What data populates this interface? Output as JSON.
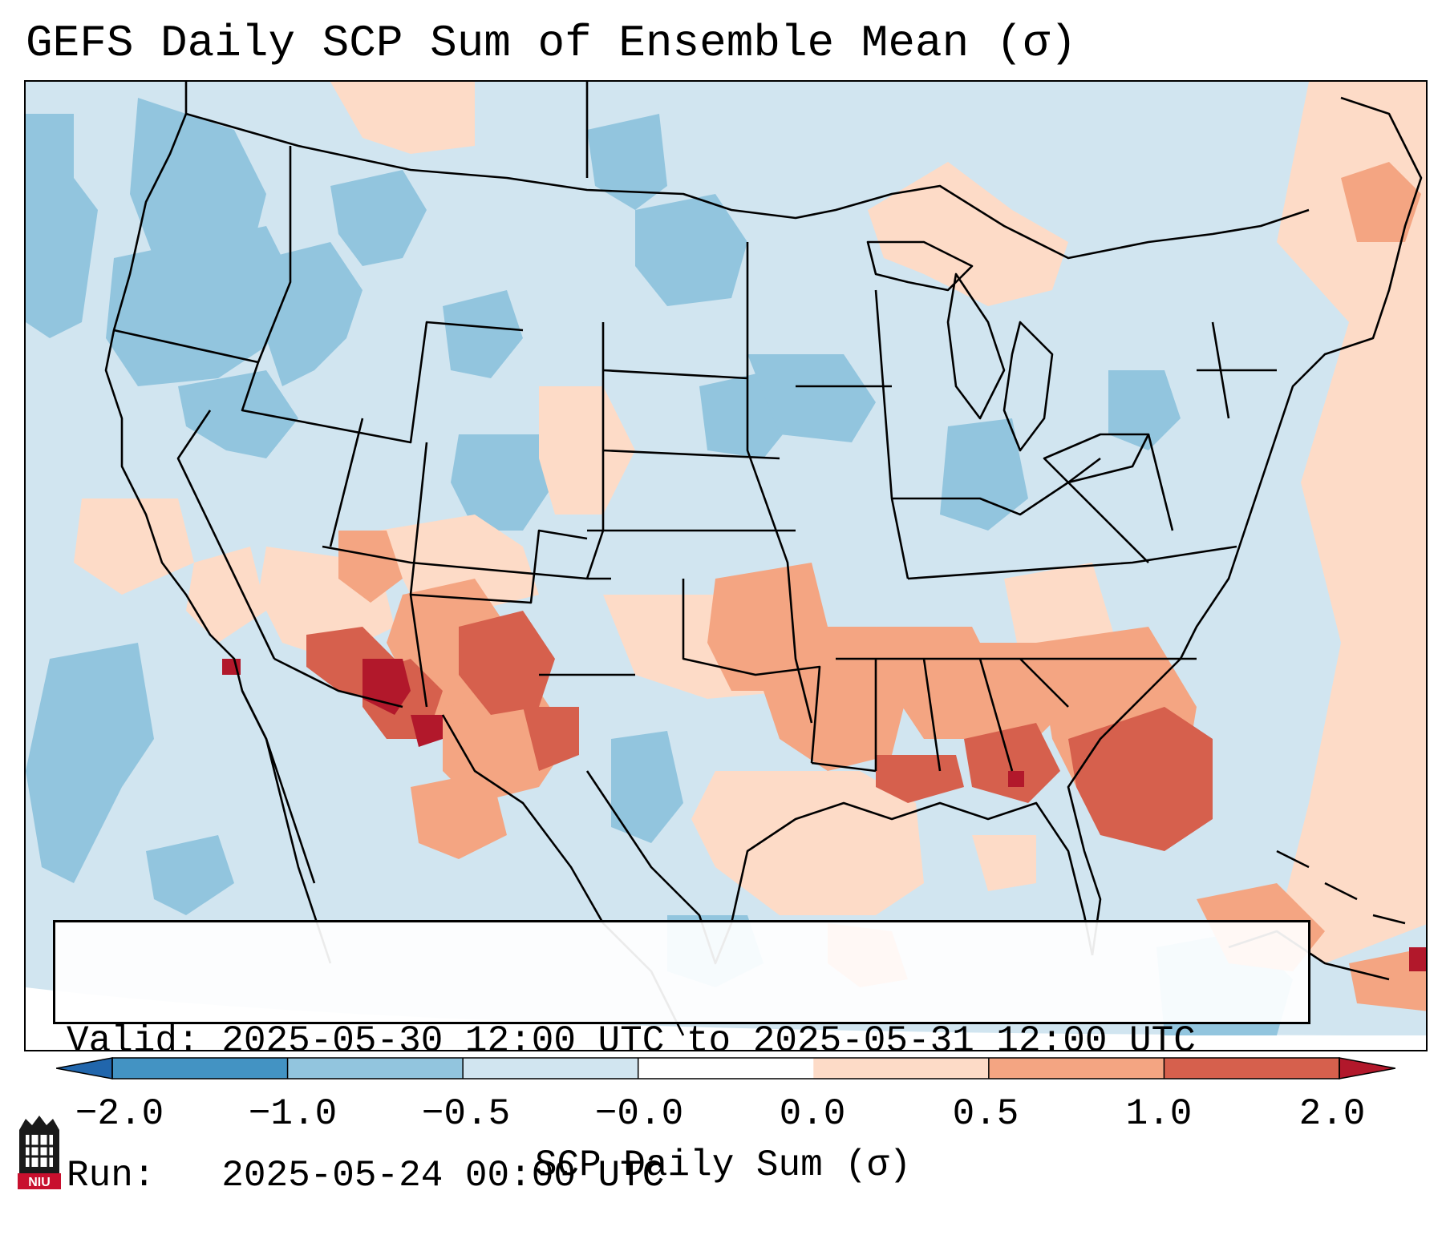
{
  "title": "GEFS Daily SCP Sum of Ensemble Mean (σ)",
  "info": {
    "valid_label": "Valid:",
    "valid_value": "2025-05-30 12:00 UTC to 2025-05-31 12:00 UTC",
    "run_label": "Run:",
    "run_value": "2025-05-24 00:00 UTC"
  },
  "colorbar": {
    "label": "SCP Daily Sum (σ)",
    "tick_labels": [
      "−2.0",
      "−1.0",
      "−0.5",
      "−0.0",
      "0.0",
      "0.5",
      "1.0",
      "2.0"
    ],
    "bins": [
      {
        "range": "< -2.0",
        "color": "#2166ac"
      },
      {
        "range": "-2.0 to -1.0",
        "color": "#4393c3"
      },
      {
        "range": "-1.0 to -0.5",
        "color": "#92c5de"
      },
      {
        "range": "-0.5 to -0.0",
        "color": "#d1e5f0"
      },
      {
        "range": "-0.0 to 0.0",
        "color": "#ffffff"
      },
      {
        "range": "0.0 to 0.5",
        "color": "#fddbc7"
      },
      {
        "range": "0.5 to 1.0",
        "color": "#f4a582"
      },
      {
        "range": "1.0 to 2.0",
        "color": "#d6604d"
      },
      {
        "range": "> 2.0",
        "color": "#b2182b"
      }
    ]
  },
  "map": {
    "region": "Continental United States",
    "field": "SCP daily sum standardized anomaly",
    "anomaly_areas": [
      {
        "name": "Desert Southwest / New Mexico / West Texas",
        "category": "1.0 to 2.0, locally > 2.0"
      },
      {
        "name": "Lower Mississippi Valley / Gulf Coast / Southeast",
        "category": "0.5 to 1.0"
      },
      {
        "name": "Georgia / North Florida",
        "category": "1.0 to 2.0"
      },
      {
        "name": "Western Atlantic off Florida",
        "category": "1.0 to 2.0"
      },
      {
        "name": "Northern Rockies / Northern Plains / Pacific Northwest",
        "category": "-1.0 to -0.5"
      }
    ]
  },
  "logo": {
    "text": "NIU",
    "color": "#c8102e"
  }
}
